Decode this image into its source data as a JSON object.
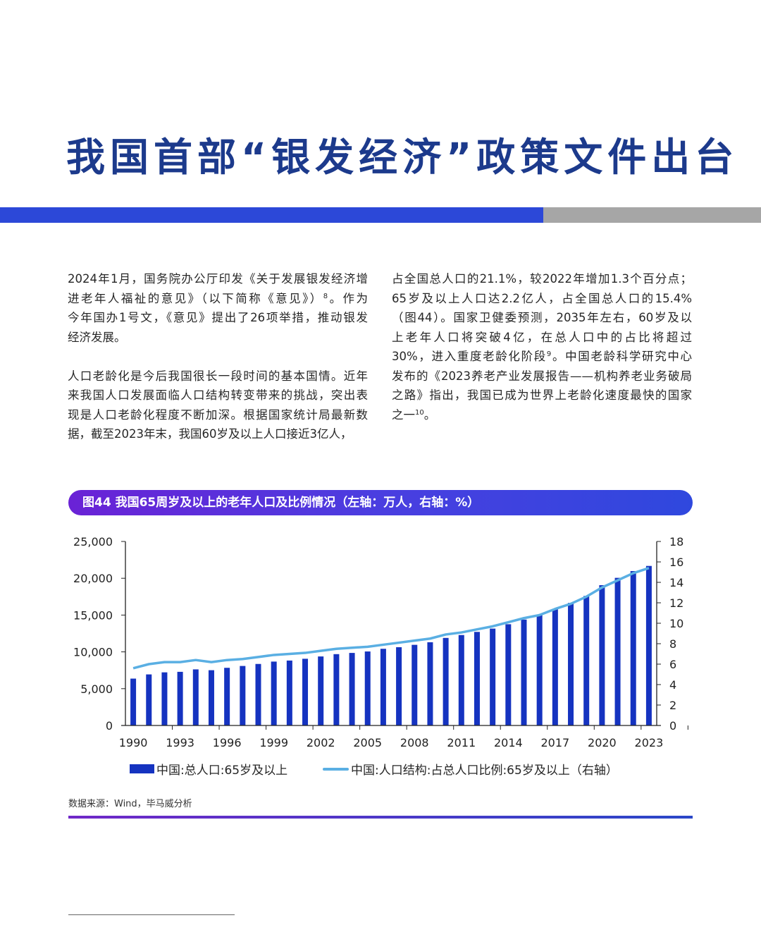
{
  "header": {
    "title": "我国首部“银发经济”政策文件出台",
    "accent_color": "#2c48d8",
    "secondary_color": "#a6a6a6"
  },
  "body": {
    "left_column": [
      [
        [
          {
            "t": "2024年1月，国务院办公厅印发《关于发展银发经济增"
          }
        ],
        [
          {
            "t": "进老年人福祉的意见》（以下简称《意见》）"
          },
          {
            "sup": "8"
          },
          {
            "t": "。作为"
          }
        ],
        [
          {
            "t": "今年国办1号文，《意见》提出了26项举措，推动银发"
          }
        ],
        [
          {
            "t": "经济发展。"
          }
        ]
      ],
      [
        [
          {
            "t": "人口老龄化是今后我国很长一段时间的基本国情。近年"
          }
        ],
        [
          {
            "t": "来我国人口发展面临人口结构转变带来的挑战，突出表"
          }
        ],
        [
          {
            "t": "现是人口老龄化程度不断加深。根据国家统计局最新数"
          }
        ],
        [
          {
            "t": "据，截至2023年末，我国60岁及以上人口接近3亿人，"
          }
        ]
      ]
    ],
    "right_column": [
      [
        [
          {
            "t": "占全国总人口的21.1%，较2022年增加1.3个百分点；"
          }
        ],
        [
          {
            "t": "65岁及以上人口达2.2亿人，占全国总人口的15.4%"
          }
        ],
        [
          {
            "t": "（图44）。国家卫健委预测，2035年左右，60岁及以"
          }
        ],
        [
          {
            "t": "上老年人口将突破4亿，在总人口中的占比将超过"
          }
        ],
        [
          {
            "t": "30%，进入重度老龄化阶段"
          },
          {
            "sup": "9"
          },
          {
            "t": "。中国老龄科学研究中心"
          }
        ],
        [
          {
            "t": "发布的《2023养老产业发展报告——机构养老业务破局"
          }
        ],
        [
          {
            "t": "之路》指出，我国已成为世界上老龄化速度最快的国家"
          }
        ],
        [
          {
            "t": "之一"
          },
          {
            "sup": "10"
          },
          {
            "t": "。"
          }
        ]
      ]
    ]
  },
  "figure": {
    "title": "图44 我国65周岁及以上的老年人口及比例情况（左轴：万人，右轴：%）",
    "source": "数据来源：Wind，毕马威分析"
  },
  "chart_data": {
    "type": "bar+line",
    "title": "图44 我国65周岁及以上的老年人口及比例情况（左轴：万人，右轴：%）",
    "x": [
      1990,
      1991,
      1992,
      1993,
      1994,
      1995,
      1996,
      1997,
      1998,
      1999,
      2000,
      2001,
      2002,
      2003,
      2004,
      2005,
      2006,
      2007,
      2008,
      2009,
      2010,
      2011,
      2012,
      2013,
      2014,
      2015,
      2016,
      2017,
      2018,
      2019,
      2020,
      2021,
      2022,
      2023
    ],
    "x_tick_labels": [
      "1990",
      "1993",
      "1996",
      "1999",
      "2002",
      "2005",
      "2008",
      "2011",
      "2014",
      "2017",
      "2020",
      "2023"
    ],
    "left_axis": {
      "ylim": [
        0,
        25000
      ],
      "ticks": [
        "0",
        "5,000",
        "10,000",
        "15,000",
        "20,000",
        "25,000"
      ],
      "tick_values": [
        0,
        5000,
        10000,
        15000,
        20000,
        25000
      ]
    },
    "right_axis": {
      "ylim": [
        0,
        18
      ],
      "ticks": [
        "0",
        "2",
        "4",
        "6",
        "8",
        "10",
        "12",
        "14",
        "16",
        "18"
      ],
      "tick_values": [
        0,
        2,
        4,
        6,
        8,
        10,
        12,
        14,
        16,
        18
      ]
    },
    "series": [
      {
        "name": "中国:总人口:65岁及以上",
        "type": "bar",
        "axis": "left",
        "color": "#1533c0",
        "values": [
          6368,
          6938,
          7218,
          7289,
          7622,
          7510,
          7833,
          8085,
          8359,
          8679,
          8821,
          9062,
          9377,
          9692,
          9857,
          10055,
          10419,
          10636,
          10956,
          11307,
          11894,
          12288,
          12714,
          13161,
          13755,
          14386,
          15003,
          15831,
          16658,
          17603,
          19064,
          20056,
          20978,
          21676
        ]
      },
      {
        "name": "中国:人口结构:占总人口比例:65岁及以上（右轴）",
        "type": "line",
        "axis": "right",
        "color": "#5aafe3",
        "values": [
          5.6,
          6.0,
          6.2,
          6.2,
          6.4,
          6.2,
          6.4,
          6.5,
          6.7,
          6.9,
          7.0,
          7.1,
          7.3,
          7.5,
          7.6,
          7.7,
          7.9,
          8.1,
          8.3,
          8.5,
          8.9,
          9.1,
          9.4,
          9.7,
          10.1,
          10.5,
          10.8,
          11.4,
          11.9,
          12.6,
          13.5,
          14.2,
          14.9,
          15.4
        ]
      }
    ],
    "legend_position": "bottom",
    "grid": false
  }
}
